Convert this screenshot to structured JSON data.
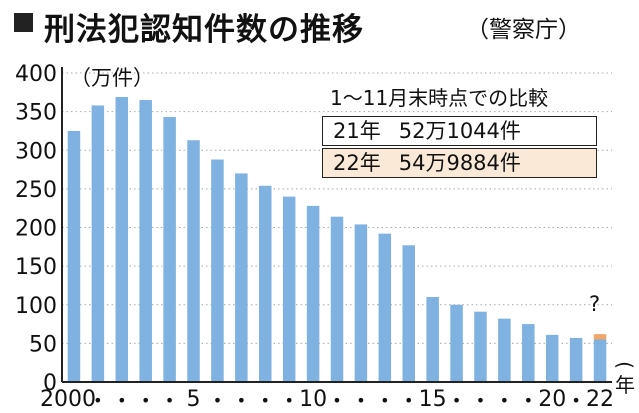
{
  "header": {
    "title": "刑法犯認知件数の推移",
    "source": "（警察庁）"
  },
  "axis": {
    "unit": "（万件）",
    "x_unit": "年"
  },
  "comparison": {
    "note": "1～11月末時点での比較",
    "rows": [
      {
        "year": "21年",
        "value": "52万1044件"
      },
      {
        "year": "22年",
        "value": "54万9884件"
      }
    ]
  },
  "unknown_marker": "?",
  "colors": {
    "bar": "#7fb2e0",
    "highlight": "#f3a66a",
    "highlight_box": "#fbe9d8",
    "axis": "#222222",
    "grid": "#aaaaaa"
  },
  "chart_data": {
    "type": "bar",
    "title": "刑法犯認知件数の推移",
    "ylabel": "（万件）",
    "xlabel": "年",
    "ylim": [
      0,
      400
    ],
    "yticks": [
      0,
      50,
      100,
      150,
      200,
      250,
      300,
      350,
      400
    ],
    "categories": [
      "2000",
      "•",
      "•",
      "•",
      "•",
      "5",
      "•",
      "•",
      "•",
      "•",
      "10",
      "•",
      "•",
      "•",
      "•",
      "15",
      "•",
      "•",
      "•",
      "•",
      "20",
      "•",
      "22"
    ],
    "values": [
      325,
      358,
      369,
      365,
      343,
      313,
      288,
      270,
      254,
      240,
      228,
      214,
      204,
      192,
      177,
      110,
      100,
      91,
      82,
      75,
      61,
      57,
      55
    ],
    "highlight": {
      "index": 22,
      "from": 55,
      "to": 62
    }
  }
}
